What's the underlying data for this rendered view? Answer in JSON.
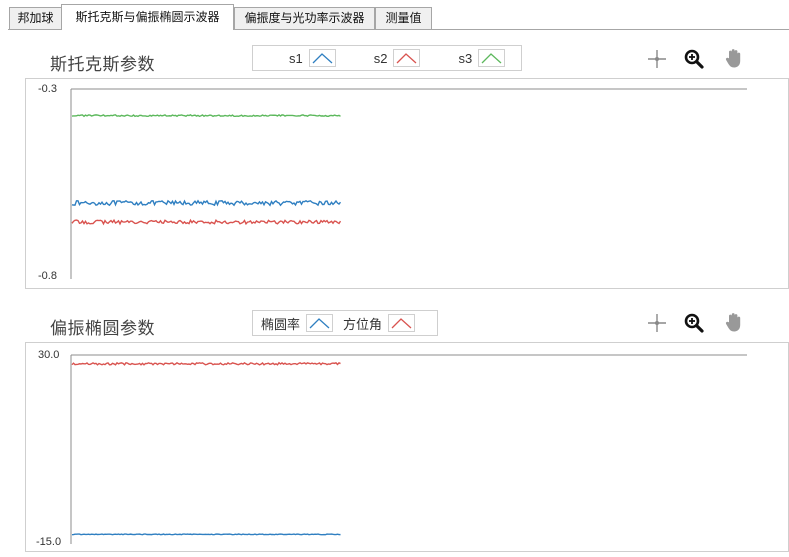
{
  "tabs": [
    {
      "label": "邦加球",
      "active": false
    },
    {
      "label": "斯托克斯与偏振椭圆示波器",
      "active": true
    },
    {
      "label": "偏振度与光功率示波器",
      "active": false
    },
    {
      "label": "测量值",
      "active": false
    }
  ],
  "stokes_panel": {
    "title": "斯托克斯参数",
    "legend": [
      {
        "label": "s1",
        "color": "#2f7fc1"
      },
      {
        "label": "s2",
        "color": "#d9534f"
      },
      {
        "label": "s3",
        "color": "#5cb85c"
      }
    ],
    "toolbar": [
      "crosshair-icon",
      "zoom-icon",
      "pan-hand-icon"
    ]
  },
  "ellipse_panel": {
    "title": "偏振椭圆参数",
    "legend": [
      {
        "label": "椭圆率",
        "color": "#2f7fc1"
      },
      {
        "label": "方位角",
        "color": "#d9534f"
      }
    ],
    "toolbar": [
      "crosshair-icon",
      "zoom-icon",
      "pan-hand-icon"
    ]
  },
  "chart_data": [
    {
      "type": "line",
      "ylim": [
        -0.8,
        -0.3
      ],
      "y_tick_labels": [
        "-0.3",
        "-0.8"
      ],
      "series": [
        {
          "name": "s1",
          "color": "#2f7fc1",
          "level": -0.6,
          "noise": 0.006
        },
        {
          "name": "s2",
          "color": "#d9534f",
          "level": -0.65,
          "noise": 0.005
        },
        {
          "name": "s3",
          "color": "#5cb85c",
          "level": -0.37,
          "noise": 0.002
        }
      ],
      "x_extent_fraction": 0.4
    },
    {
      "type": "line",
      "ylim": [
        -15.0,
        30.0
      ],
      "y_tick_labels": [
        "30.0",
        "-15.0"
      ],
      "series": [
        {
          "name": "椭圆率",
          "color": "#2f7fc1",
          "level": -12.7,
          "noise": 0.08
        },
        {
          "name": "方位角",
          "color": "#d9534f",
          "level": 27.9,
          "noise": 0.25
        }
      ],
      "x_extent_fraction": 0.4
    }
  ]
}
